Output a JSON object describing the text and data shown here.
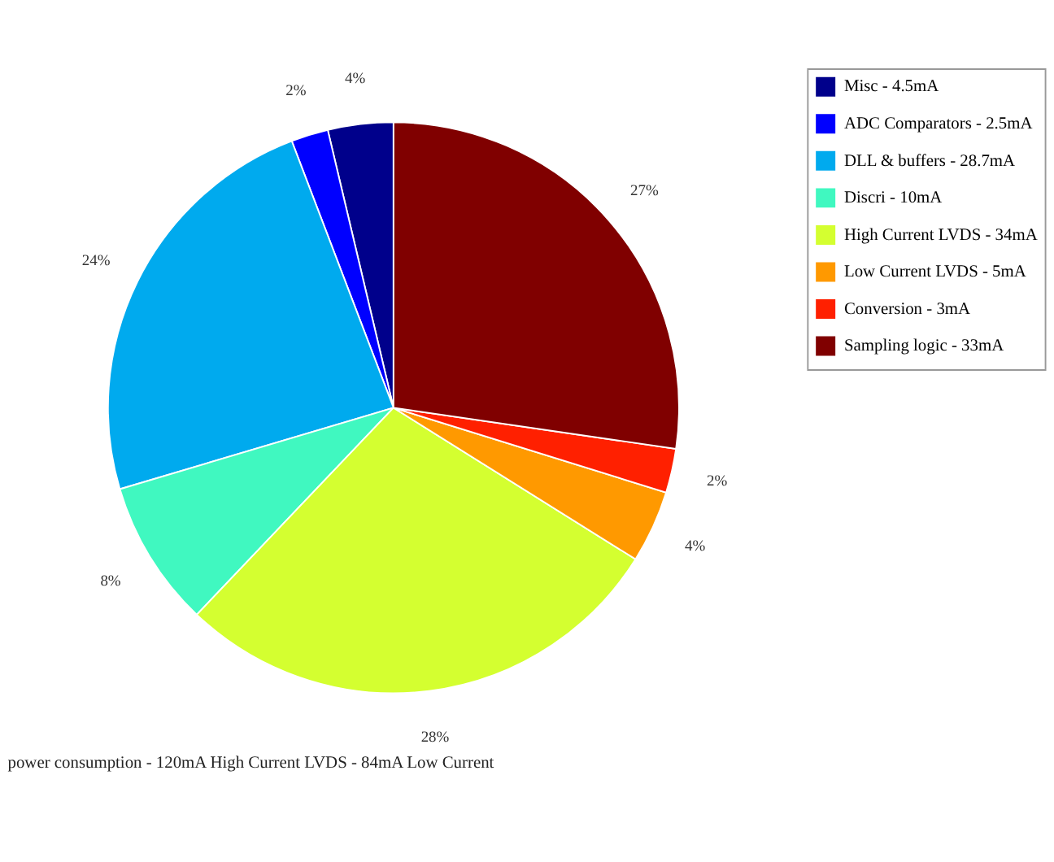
{
  "chart_data": {
    "type": "pie",
    "categories": [
      "Misc - 4.5mA",
      "ADC Comparators - 2.5mA",
      "DLL & buffers - 28.7mA",
      "Discri - 10mA",
      "High Current LVDS - 34mA",
      "Low Current LVDS - 5mA",
      "Conversion - 3mA",
      "Sampling logic - 33mA"
    ],
    "values": [
      3.7,
      2.1,
      23.8,
      8.3,
      28.2,
      4.1,
      2.5,
      27.3
    ],
    "value_labels": [
      "4%",
      "2%",
      "24%",
      "8%",
      "28%",
      "4%",
      "2%",
      "27%"
    ],
    "colors": [
      "#00008b",
      "#0000ff",
      "#00aaee",
      "#40f8c0",
      "#d4ff30",
      "#ff9900",
      "#ff2000",
      "#800000"
    ],
    "legend": "right",
    "annotations": [
      "power consumption - 120mA High Current LVDS - 84mA Low Current"
    ]
  }
}
